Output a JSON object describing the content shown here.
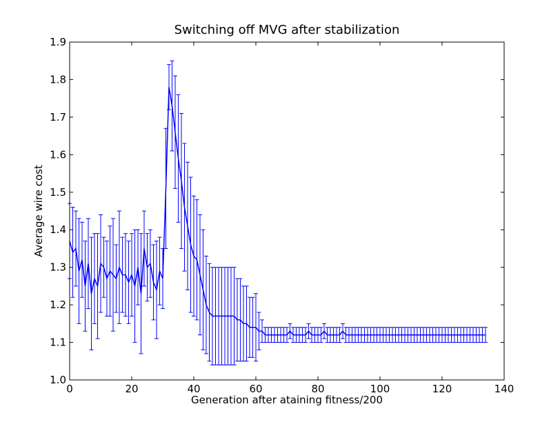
{
  "chart_data": {
    "type": "line",
    "title": "Switching off MVG after stabilization",
    "xlabel": "Generation after ataining fitness/200",
    "ylabel": "Average wire cost",
    "xlim": [
      0,
      140
    ],
    "ylim": [
      1.0,
      1.9
    ],
    "xticks": [
      "0",
      "20",
      "40",
      "60",
      "80",
      "100",
      "120",
      "140"
    ],
    "yticks": [
      "1.0",
      "1.1",
      "1.2",
      "1.3",
      "1.4",
      "1.5",
      "1.6",
      "1.7",
      "1.8",
      "1.9"
    ],
    "grid": false,
    "line_color": "#0000ff",
    "series": [
      {
        "x": [
          0,
          1,
          2,
          3,
          4,
          5,
          6,
          7,
          8,
          9,
          10,
          11,
          12,
          13,
          14,
          15,
          16,
          17,
          18,
          19,
          20,
          21,
          22,
          23,
          24,
          25,
          26,
          27,
          28,
          29,
          30,
          31,
          32,
          33,
          34,
          35,
          36,
          37,
          38,
          39,
          40,
          41,
          42,
          43,
          44,
          45,
          46,
          47,
          48,
          49,
          50,
          51,
          52,
          53,
          54,
          55,
          56,
          57,
          58,
          59,
          60,
          61,
          62,
          63,
          64,
          65,
          66,
          67,
          68,
          69,
          70,
          71,
          72,
          73,
          74,
          75,
          76,
          77,
          78,
          79,
          80,
          81,
          82,
          83,
          84,
          85,
          86,
          87,
          88,
          89,
          90,
          91,
          92,
          93,
          94,
          95,
          96,
          97,
          98,
          99,
          100,
          101,
          102,
          103,
          104,
          105,
          106,
          107,
          108,
          109,
          110,
          111,
          112,
          113,
          114,
          115,
          116,
          117,
          118,
          119,
          120,
          121,
          122,
          123,
          124,
          125,
          126,
          127,
          128,
          129,
          130,
          131,
          132,
          133,
          134
        ],
        "y": [
          1.37,
          1.34,
          1.35,
          1.29,
          1.32,
          1.25,
          1.31,
          1.23,
          1.27,
          1.25,
          1.31,
          1.3,
          1.27,
          1.29,
          1.28,
          1.27,
          1.3,
          1.28,
          1.28,
          1.26,
          1.28,
          1.25,
          1.3,
          1.23,
          1.35,
          1.3,
          1.31,
          1.26,
          1.24,
          1.29,
          1.27,
          1.51,
          1.78,
          1.73,
          1.66,
          1.59,
          1.53,
          1.46,
          1.41,
          1.36,
          1.33,
          1.32,
          1.28,
          1.24,
          1.2,
          1.18,
          1.17,
          1.17,
          1.17,
          1.17,
          1.17,
          1.17,
          1.17,
          1.17,
          1.16,
          1.16,
          1.15,
          1.15,
          1.14,
          1.14,
          1.14,
          1.13,
          1.13,
          1.12,
          1.12,
          1.12,
          1.12,
          1.12,
          1.12,
          1.12,
          1.12,
          1.13,
          1.12,
          1.12,
          1.12,
          1.12,
          1.12,
          1.13,
          1.12,
          1.12,
          1.12,
          1.12,
          1.13,
          1.12,
          1.12,
          1.12,
          1.12,
          1.12,
          1.13,
          1.12,
          1.12,
          1.12,
          1.12,
          1.12,
          1.12,
          1.12,
          1.12,
          1.12,
          1.12,
          1.12,
          1.12,
          1.12,
          1.12,
          1.12,
          1.12,
          1.12,
          1.12,
          1.12,
          1.12,
          1.12,
          1.12,
          1.12,
          1.12,
          1.12,
          1.12,
          1.12,
          1.12,
          1.12,
          1.12,
          1.12,
          1.12,
          1.12,
          1.12,
          1.12,
          1.12,
          1.12,
          1.12,
          1.12,
          1.12,
          1.12,
          1.12,
          1.12,
          1.12,
          1.12,
          1.12
        ],
        "err": [
          0.1,
          0.12,
          0.1,
          0.14,
          0.1,
          0.12,
          0.12,
          0.15,
          0.12,
          0.14,
          0.13,
          0.08,
          0.1,
          0.12,
          0.15,
          0.09,
          0.15,
          0.1,
          0.11,
          0.11,
          0.11,
          0.15,
          0.1,
          0.16,
          0.1,
          0.09,
          0.09,
          0.1,
          0.13,
          0.09,
          0.08,
          0.16,
          0.06,
          0.12,
          0.15,
          0.17,
          0.18,
          0.17,
          0.17,
          0.18,
          0.16,
          0.16,
          0.16,
          0.16,
          0.13,
          0.13,
          0.13,
          0.13,
          0.13,
          0.13,
          0.13,
          0.13,
          0.13,
          0.13,
          0.11,
          0.11,
          0.1,
          0.1,
          0.08,
          0.08,
          0.09,
          0.05,
          0.03,
          0.02,
          0.02,
          0.02,
          0.02,
          0.02,
          0.02,
          0.02,
          0.02,
          0.02,
          0.02,
          0.02,
          0.02,
          0.02,
          0.02,
          0.02,
          0.02,
          0.02,
          0.02,
          0.02,
          0.02,
          0.02,
          0.02,
          0.02,
          0.02,
          0.02,
          0.02,
          0.02,
          0.02,
          0.02,
          0.02,
          0.02,
          0.02,
          0.02,
          0.02,
          0.02,
          0.02,
          0.02,
          0.02,
          0.02,
          0.02,
          0.02,
          0.02,
          0.02,
          0.02,
          0.02,
          0.02,
          0.02,
          0.02,
          0.02,
          0.02,
          0.02,
          0.02,
          0.02,
          0.02,
          0.02,
          0.02,
          0.02,
          0.02,
          0.02,
          0.02,
          0.02,
          0.02,
          0.02,
          0.02,
          0.02,
          0.02,
          0.02,
          0.02,
          0.02,
          0.02,
          0.02,
          0.02
        ]
      }
    ]
  }
}
